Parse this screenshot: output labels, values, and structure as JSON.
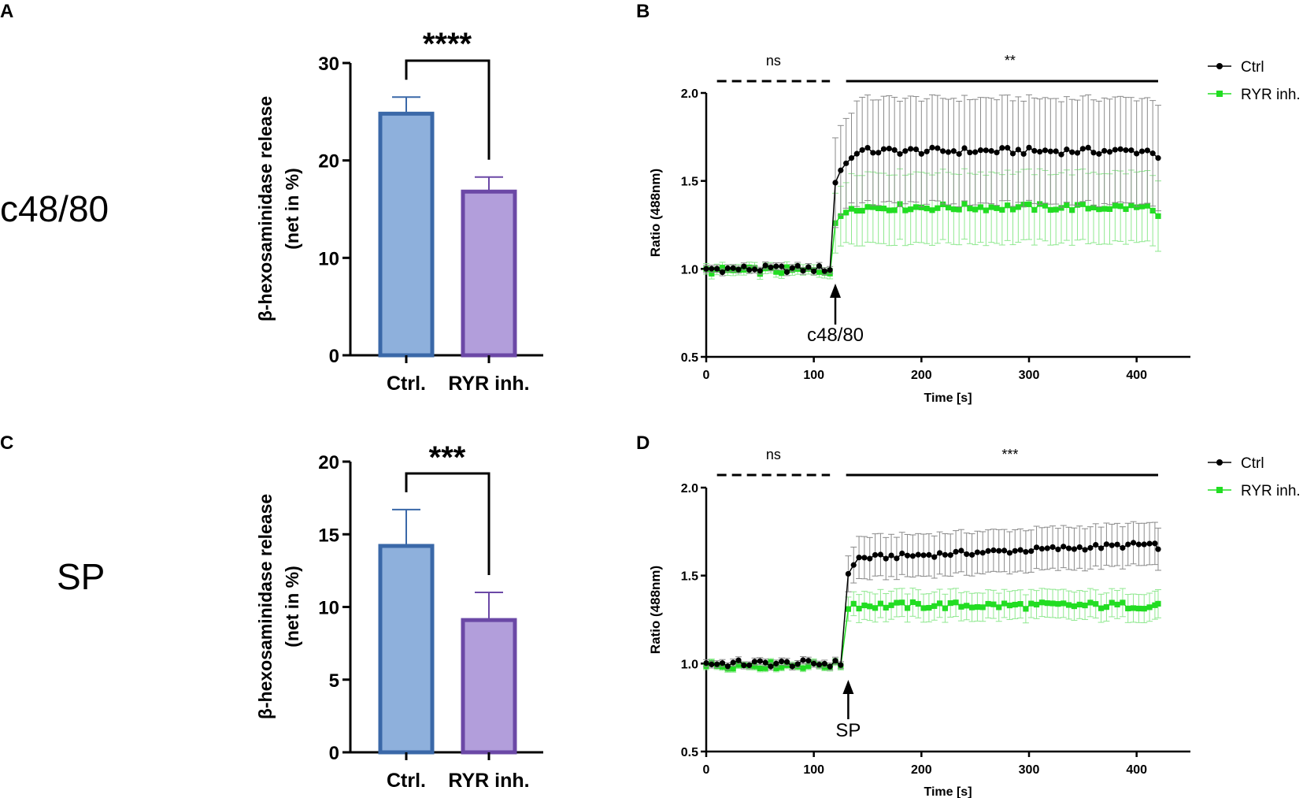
{
  "colors": {
    "ctrl_bar_fill": "#8eb0dc",
    "ctrl_bar_edge": "#3a68a8",
    "ryr_bar_fill": "#b29edb",
    "ryr_bar_edge": "#6b48a6",
    "ctrl_line": "#000000",
    "ctrl_err": "#8a8a8a",
    "ryr_line": "#22dd22",
    "ryr_err": "#8fe88f"
  },
  "rows": [
    {
      "label": "c48/80"
    },
    {
      "label": "SP"
    }
  ],
  "chart_data": [
    {
      "panel": "A",
      "type": "bar",
      "categories": [
        "Ctrl.",
        "RYR inh."
      ],
      "values": [
        24.8,
        16.8
      ],
      "errors": [
        1.7,
        1.5
      ],
      "ylabel_line1": "β-hexosaminidase release",
      "ylabel_line2": "(net in %)",
      "ylim": [
        0,
        30
      ],
      "yticks": [
        0,
        10,
        20,
        30
      ],
      "ytick_labels": [
        "0",
        "10",
        "20",
        "30"
      ],
      "significance": "****"
    },
    {
      "panel": "B",
      "type": "line",
      "xlabel": "Time [s]",
      "ylabel": "Ratio (488nm)",
      "xlim": [
        0,
        450
      ],
      "ylim": [
        0.5,
        2.0
      ],
      "xticks": [
        0,
        100,
        200,
        300,
        400
      ],
      "xtick_labels": [
        "0",
        "100",
        "200",
        "300",
        "400"
      ],
      "yticks": [
        0.5,
        1.0,
        1.5,
        2.0
      ],
      "ytick_labels": [
        "0.5",
        "1.0",
        "1.5",
        "2.0"
      ],
      "stimulus": {
        "label": "c48/80",
        "time": 120
      },
      "stat_pre": {
        "label": "ns",
        "from": 10,
        "to": 115
      },
      "stat_post": {
        "label": "**",
        "from": 130,
        "to": 420
      },
      "legend": [
        "Ctrl",
        "RYR inh."
      ],
      "series": [
        {
          "name": "Ctrl",
          "baseline": 1.0,
          "baseline_err": 0.02,
          "jump_values": [
            1.49,
            1.56,
            1.6,
            1.63
          ],
          "plateau": 1.67,
          "plateau_err": 0.3,
          "end_value": 1.63,
          "wobble": 0.02
        },
        {
          "name": "RYR inh.",
          "baseline": 0.99,
          "baseline_err": 0.03,
          "jump_values": [
            1.26,
            1.3,
            1.32
          ],
          "plateau": 1.35,
          "plateau_err": 0.2,
          "end_value": 1.3,
          "wobble": 0.02
        }
      ]
    },
    {
      "panel": "C",
      "type": "bar",
      "categories": [
        "Ctrl.",
        "RYR inh."
      ],
      "values": [
        14.2,
        9.1
      ],
      "errors": [
        2.5,
        1.9
      ],
      "ylabel_line1": "β-hexosaminidase release",
      "ylabel_line2": "(net in %)",
      "ylim": [
        0,
        20
      ],
      "yticks": [
        0,
        5,
        10,
        15,
        20
      ],
      "ytick_labels": [
        "0",
        "5",
        "10",
        "15",
        "20"
      ],
      "significance": "***"
    },
    {
      "panel": "D",
      "type": "line",
      "xlabel": "Time [s]",
      "ylabel": "Ratio (488nm)",
      "xlim": [
        0,
        450
      ],
      "ylim": [
        0.5,
        2.0
      ],
      "xticks": [
        0,
        100,
        200,
        300,
        400
      ],
      "xtick_labels": [
        "0",
        "100",
        "200",
        "300",
        "400"
      ],
      "yticks": [
        0.5,
        1.0,
        1.5,
        2.0
      ],
      "ytick_labels": [
        "0.5",
        "1.0",
        "1.5",
        "2.0"
      ],
      "stimulus": {
        "label": "SP",
        "time": 132
      },
      "stat_pre": {
        "label": "ns",
        "from": 10,
        "to": 115
      },
      "stat_post": {
        "label": "***",
        "from": 130,
        "to": 420
      },
      "legend": [
        "Ctrl",
        "RYR inh."
      ],
      "series": [
        {
          "name": "Ctrl",
          "baseline": 1.0,
          "baseline_err": 0.02,
          "jump_values": [
            1.51,
            1.56
          ],
          "plateau": 1.6,
          "plateau_err": 0.12,
          "end_value": 1.65,
          "wobble": 0.015,
          "drift": 0.08
        },
        {
          "name": "RYR inh.",
          "baseline": 0.99,
          "baseline_err": 0.02,
          "jump_values": [
            1.31,
            1.34
          ],
          "plateau": 1.33,
          "plateau_err": 0.08,
          "end_value": 1.34,
          "wobble": 0.02,
          "drift": 0.0
        }
      ]
    }
  ]
}
